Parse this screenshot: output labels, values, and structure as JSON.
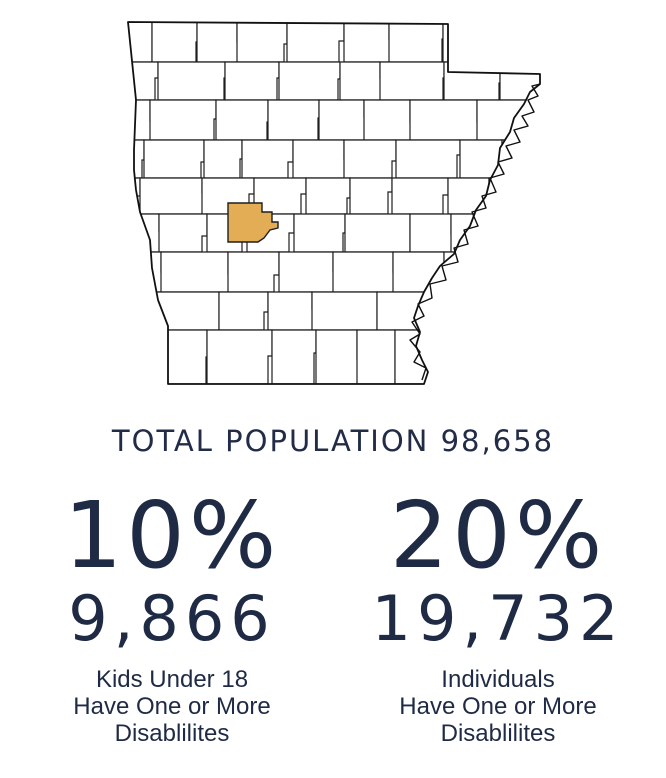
{
  "map": {
    "highlight_color": "#e3ad55",
    "county_fill": "#ffffff",
    "line_color": "#1e1e1e"
  },
  "total_population": "TOTAL POPULATION 98,658",
  "kids": {
    "percent": "10%",
    "count": "9,866",
    "line1": "Kids Under 18",
    "line2": "Have One or More",
    "line3": "Disablilites"
  },
  "individuals": {
    "percent": "20%",
    "count": "19,732",
    "line1": "Individuals",
    "line2": "Have One or More",
    "line3": "Disablilites"
  }
}
